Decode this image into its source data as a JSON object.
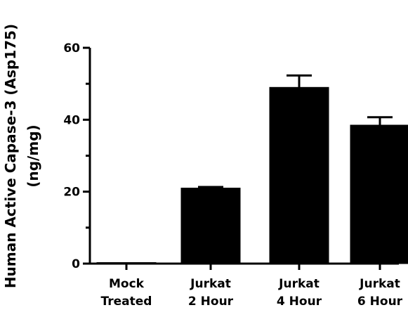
{
  "chart_data": {
    "type": "bar",
    "title": "",
    "xlabel": "",
    "ylabel_line1": "Human Active Capase-3 (Asp175)",
    "ylabel_line2": "(ng/mg)",
    "categories": [
      [
        "Mock",
        "Treated"
      ],
      [
        "Jurkat",
        "2 Hour"
      ],
      [
        "Jurkat",
        "4 Hour"
      ],
      [
        "Jurkat",
        "6 Hour"
      ]
    ],
    "values": [
      0.2,
      21,
      49,
      38.5
    ],
    "error_upper": [
      0,
      0.3,
      3.3,
      2.2
    ],
    "ylim": [
      0,
      60
    ],
    "yticks": [
      0,
      20,
      40,
      60
    ],
    "grid": false,
    "bar_color": "#000000"
  }
}
